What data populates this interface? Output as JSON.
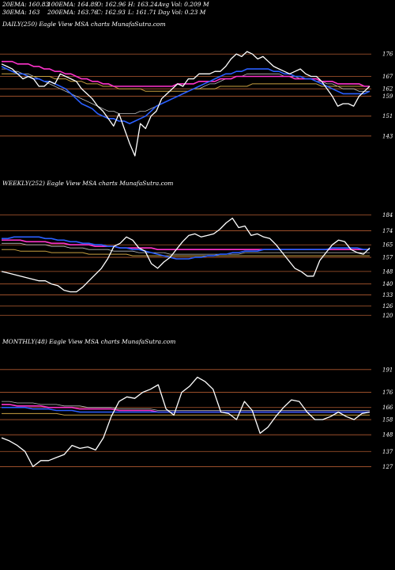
{
  "header": {
    "row1": [
      "20EMA: 160.83",
      "100EMA: 164.89",
      "O: 162.96",
      "H: 163.24",
      "Avg Vol: 0.209 M"
    ],
    "row2": [
      "30EMA: 163",
      "200EMA: 163.76",
      "C: 162.93",
      "L: 161.71",
      "Day Vol: 0.23 M"
    ]
  },
  "colors": {
    "background": "#000000",
    "price": "#ffffff",
    "ema_blue": "#2a5fff",
    "ema_pink": "#ff33cc",
    "ema_gold": "#c8a040",
    "ema_gray": "#bbbbbb",
    "level_line": "#b05a30"
  },
  "chart_data": [
    {
      "type": "line",
      "title": "DAILY(250) Eagle  View  MSA charts MunafaSutra.com",
      "yticks": [
        176,
        167,
        162,
        159,
        151,
        143
      ],
      "ylim": [
        127,
        185
      ],
      "series": [
        {
          "role": "price",
          "values": [
            172,
            171,
            170,
            168,
            166,
            167,
            166,
            163,
            163,
            165,
            164,
            168,
            167,
            166,
            165,
            162,
            160,
            158,
            155,
            153,
            150,
            147,
            152,
            146,
            140,
            135,
            148,
            146,
            151,
            153,
            158,
            160,
            162,
            164,
            163,
            166,
            166,
            168,
            168,
            168,
            169,
            169,
            171,
            174,
            176,
            175,
            177,
            176,
            174,
            175,
            173,
            171,
            170,
            169,
            168,
            169,
            170,
            168,
            167,
            167,
            165,
            162,
            159,
            155,
            156,
            156,
            155,
            159,
            161,
            163
          ]
        },
        {
          "role": "ema-blue",
          "values": [
            171,
            170,
            169,
            168,
            168,
            167,
            166,
            166,
            165,
            165,
            164,
            163,
            162,
            160,
            158,
            156,
            155,
            154,
            152,
            151,
            150,
            150,
            149,
            149,
            148,
            149,
            150,
            151,
            153,
            155,
            156,
            157,
            158,
            159,
            160,
            161,
            162,
            163,
            164,
            165,
            166,
            167,
            168,
            168,
            169,
            169,
            170,
            170,
            170,
            170,
            170,
            169,
            169,
            168,
            168,
            167,
            167,
            166,
            166,
            165,
            164,
            163,
            162,
            161,
            160,
            160,
            160,
            160,
            160,
            161
          ]
        },
        {
          "role": "ema-pink",
          "values": [
            173,
            173,
            173,
            172,
            172,
            172,
            171,
            171,
            170,
            170,
            169,
            169,
            168,
            168,
            167,
            166,
            166,
            165,
            165,
            164,
            164,
            163,
            163,
            163,
            163,
            163,
            163,
            163,
            163,
            163,
            163,
            163,
            163,
            164,
            164,
            164,
            164,
            165,
            165,
            165,
            165,
            166,
            166,
            166,
            167,
            167,
            167,
            167,
            167,
            167,
            167,
            167,
            167,
            167,
            167,
            166,
            166,
            166,
            166,
            166,
            165,
            165,
            165,
            164,
            164,
            164,
            164,
            164,
            163,
            163
          ]
        },
        {
          "role": "ema-gold",
          "values": [
            168,
            168,
            168,
            168,
            168,
            167,
            167,
            167,
            167,
            167,
            166,
            166,
            166,
            165,
            165,
            165,
            164,
            164,
            164,
            163,
            163,
            163,
            162,
            162,
            162,
            162,
            162,
            161,
            161,
            161,
            161,
            161,
            161,
            161,
            161,
            161,
            162,
            162,
            162,
            162,
            162,
            163,
            163,
            163,
            163,
            163,
            163,
            164,
            164,
            164,
            164,
            164,
            164,
            164,
            164,
            164,
            164,
            164,
            164,
            164,
            163,
            163,
            163,
            163,
            163,
            163,
            163,
            163,
            163,
            163
          ]
        },
        {
          "role": "ema-gray",
          "values": [
            170,
            170,
            169,
            169,
            168,
            168,
            167,
            166,
            165,
            164,
            163,
            162,
            161,
            160,
            159,
            158,
            157,
            156,
            155,
            154,
            153,
            153,
            152,
            152,
            152,
            152,
            153,
            153,
            154,
            155,
            156,
            157,
            158,
            159,
            160,
            161,
            162,
            162,
            163,
            164,
            164,
            165,
            166,
            166,
            167,
            167,
            168,
            168,
            168,
            168,
            168,
            168,
            168,
            167,
            167,
            167,
            166,
            166,
            166,
            165,
            165,
            164,
            164,
            163,
            162,
            162,
            162,
            161,
            161,
            161
          ]
        }
      ]
    },
    {
      "type": "line",
      "title": "WEEKLY(252) Eagle  View  MSA charts MunafaSutra.com",
      "yticks": [
        184,
        174,
        165,
        157,
        148,
        140,
        133,
        126,
        120
      ],
      "ylim": [
        108,
        200
      ],
      "series": [
        {
          "role": "price",
          "values": [
            148,
            147,
            146,
            145,
            144,
            143,
            142,
            142,
            140,
            139,
            136,
            135,
            135,
            138,
            142,
            146,
            150,
            156,
            164,
            166,
            170,
            168,
            163,
            161,
            153,
            150,
            154,
            157,
            162,
            167,
            171,
            172,
            170,
            171,
            172,
            175,
            179,
            182,
            176,
            177,
            171,
            172,
            170,
            169,
            165,
            160,
            155,
            150,
            148,
            145,
            145,
            155,
            160,
            165,
            168,
            167,
            162,
            160,
            159,
            163
          ]
        },
        {
          "role": "ema-blue",
          "values": [
            169,
            169,
            170,
            170,
            170,
            170,
            170,
            169,
            169,
            168,
            168,
            167,
            167,
            166,
            166,
            165,
            165,
            164,
            164,
            163,
            163,
            162,
            162,
            161,
            160,
            159,
            158,
            157,
            156,
            156,
            156,
            157,
            157,
            158,
            158,
            159,
            159,
            160,
            160,
            161,
            161,
            161,
            162,
            162,
            162,
            162,
            162,
            162,
            162,
            162,
            162,
            162,
            162,
            163,
            163,
            163,
            163,
            163,
            162,
            162
          ]
        },
        {
          "role": "ema-pink",
          "values": [
            168,
            168,
            168,
            168,
            167,
            167,
            167,
            167,
            166,
            166,
            166,
            165,
            165,
            165,
            165,
            164,
            164,
            164,
            164,
            163,
            163,
            163,
            163,
            163,
            163,
            162,
            162,
            162,
            162,
            162,
            162,
            162,
            162,
            162,
            162,
            162,
            162,
            162,
            162,
            162,
            162,
            162,
            162,
            162,
            162,
            162,
            162,
            162,
            162,
            162,
            162,
            162,
            162,
            162,
            162,
            162,
            162,
            162,
            162,
            162
          ]
        },
        {
          "role": "ema-gold",
          "values": [
            162,
            162,
            162,
            161,
            161,
            161,
            161,
            161,
            160,
            160,
            160,
            160,
            160,
            160,
            159,
            159,
            159,
            159,
            159,
            159,
            159,
            158,
            158,
            158,
            158,
            158,
            158,
            158,
            158,
            158,
            158,
            158,
            158,
            158,
            158,
            158,
            158,
            158,
            158,
            158,
            158,
            158,
            158,
            158,
            158,
            158,
            158,
            158,
            158,
            158,
            158,
            158,
            158,
            158,
            158,
            158,
            158,
            158,
            158,
            158
          ]
        },
        {
          "role": "ema-gray",
          "values": [
            166,
            166,
            166,
            166,
            165,
            165,
            165,
            165,
            164,
            164,
            164,
            163,
            163,
            163,
            162,
            162,
            162,
            162,
            161,
            161,
            161,
            161,
            160,
            160,
            160,
            160,
            160,
            159,
            159,
            159,
            159,
            159,
            159,
            159,
            159,
            159,
            159,
            159,
            159,
            160,
            160,
            160,
            160,
            160,
            160,
            160,
            160,
            160,
            160,
            160,
            160,
            160,
            160,
            160,
            160,
            160,
            160,
            160,
            160,
            160
          ]
        }
      ]
    },
    {
      "type": "line",
      "title": "MONTHLY(48) Eagle  View  MSA charts MunafaSutra.com",
      "yticks": [
        191,
        176,
        166,
        158,
        148,
        137,
        127
      ],
      "ylim": [
        110,
        205
      ],
      "series": [
        {
          "role": "price",
          "values": [
            146,
            144,
            141,
            137,
            127,
            131,
            131,
            133,
            135,
            141,
            139,
            140,
            138,
            146,
            160,
            170,
            173,
            172,
            176,
            178,
            181,
            165,
            161,
            176,
            180,
            186,
            183,
            178,
            163,
            162,
            158,
            170,
            164,
            149,
            153,
            160,
            166,
            171,
            170,
            163,
            158,
            158,
            160,
            163,
            160,
            158,
            162,
            163
          ]
        },
        {
          "role": "ema-blue",
          "values": [
            166,
            166,
            166,
            166,
            165,
            165,
            165,
            164,
            164,
            164,
            163,
            163,
            163,
            163,
            163,
            163,
            163,
            163,
            163,
            163,
            163,
            163,
            163,
            163,
            163,
            163,
            163,
            163,
            163,
            163,
            163,
            163,
            163,
            163,
            163,
            163,
            163,
            163,
            163,
            163,
            163,
            163,
            163,
            163,
            163,
            163,
            163,
            163
          ]
        },
        {
          "role": "ema-pink",
          "values": [
            168,
            168,
            167,
            167,
            167,
            167,
            166,
            166,
            166,
            166,
            165,
            165,
            165,
            165,
            165,
            164,
            164,
            164,
            164,
            164,
            163,
            163,
            163,
            163,
            163,
            163,
            163,
            163,
            163,
            163,
            163,
            163,
            163,
            163,
            163,
            163,
            163,
            163,
            163,
            163,
            163,
            163,
            163,
            163,
            163,
            163,
            163,
            163
          ]
        },
        {
          "role": "ema-gold",
          "values": [
            162,
            162,
            162,
            162,
            162,
            162,
            162,
            162,
            161,
            161,
            161,
            161,
            161,
            161,
            161,
            161,
            161,
            161,
            161,
            161,
            161,
            161,
            161,
            161,
            161,
            161,
            161,
            161,
            161,
            161,
            161,
            161,
            161,
            161,
            161,
            161,
            161,
            161,
            161,
            161,
            161,
            161,
            161,
            161,
            161,
            161,
            161,
            161
          ]
        },
        {
          "role": "ema-gray",
          "values": [
            170,
            170,
            169,
            169,
            169,
            168,
            168,
            168,
            167,
            167,
            167,
            166,
            166,
            166,
            166,
            165,
            165,
            165,
            165,
            165,
            164,
            164,
            164,
            164,
            164,
            164,
            164,
            164,
            164,
            164,
            164,
            164,
            164,
            164,
            164,
            164,
            164,
            164,
            164,
            164,
            164,
            164,
            164,
            164,
            164,
            164,
            164,
            164
          ]
        }
      ]
    }
  ]
}
